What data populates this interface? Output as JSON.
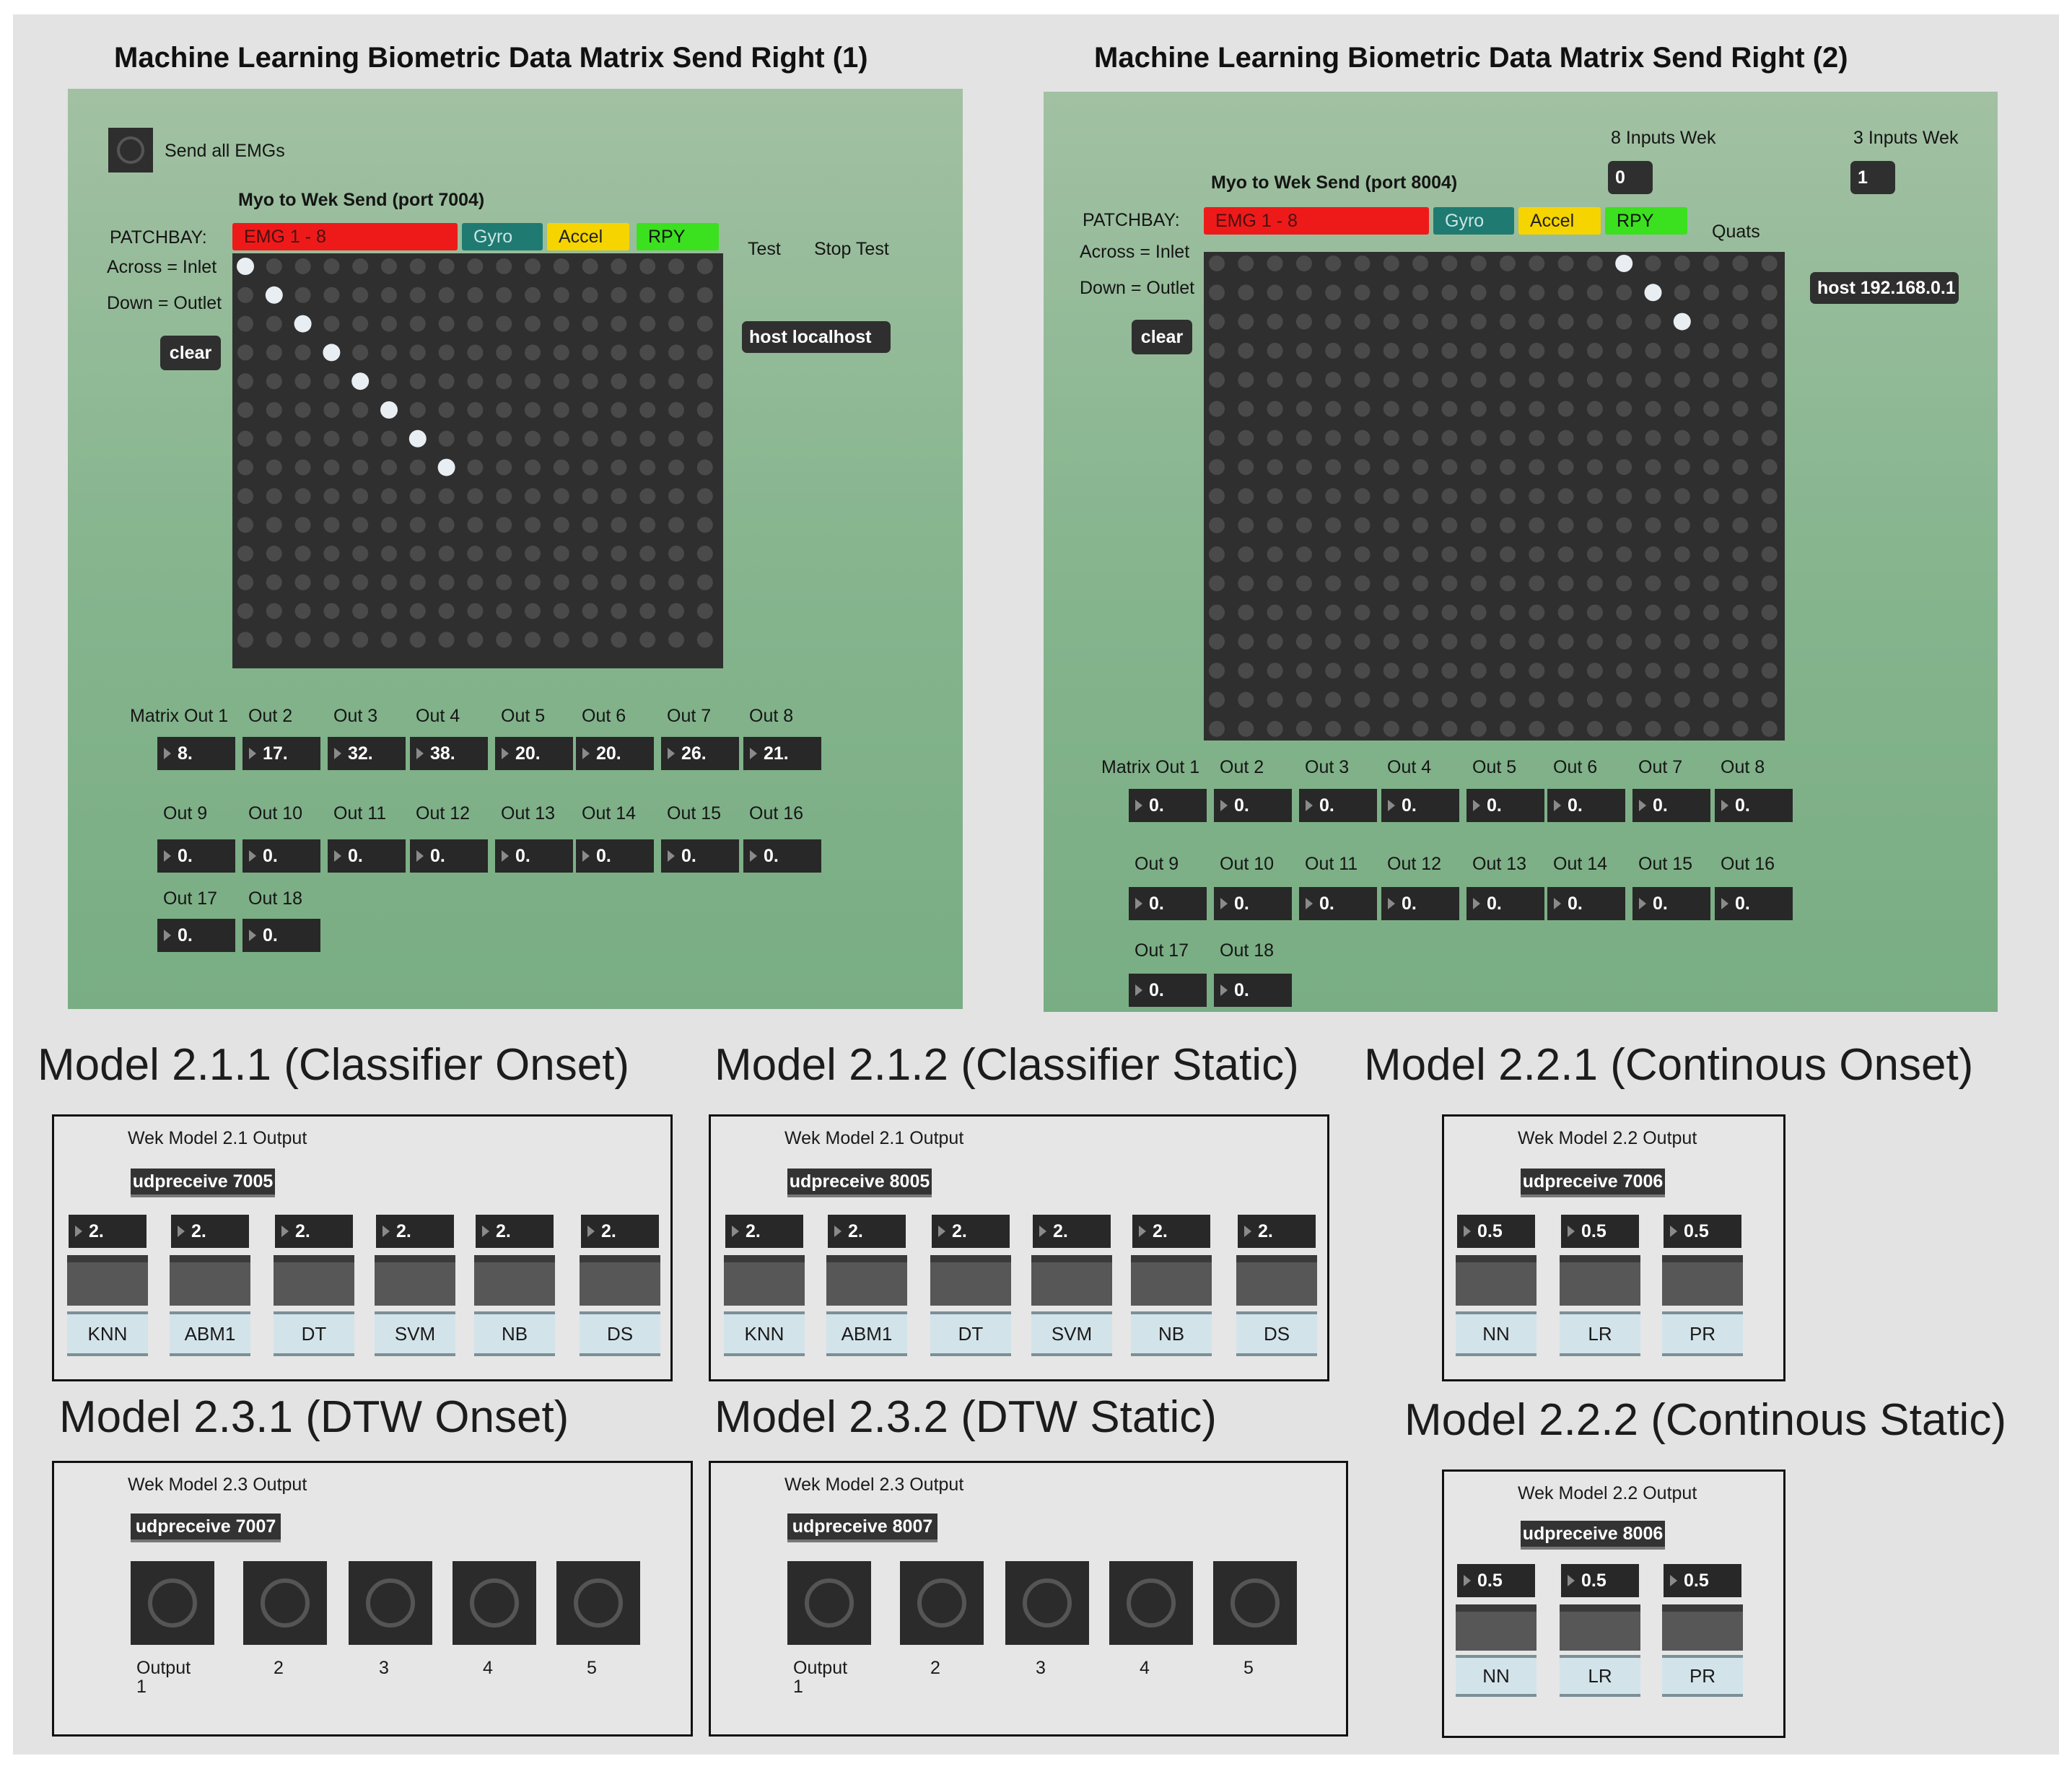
{
  "panel1": {
    "title": "Machine Learning Biometric Data Matrix Send Right (1)",
    "send_all_label": "Send all EMGs",
    "subtitle": "Myo to Wek Send (port 7004)",
    "patchbay_label": "PATCHBAY:",
    "across_label": "Across = Inlet",
    "down_label": "Down = Outlet",
    "clear_label": "clear",
    "headers": {
      "emg": "EMG 1 - 8",
      "gyro": "Gyro",
      "accel": "Accel",
      "rpy": "RPY",
      "test": "Test",
      "stop_test": "Stop Test"
    },
    "host": "host localhost",
    "out_labels": [
      "Matrix Out 1",
      "Out 2",
      "Out 3",
      "Out 4",
      "Out 5",
      "Out 6",
      "Out 7",
      "Out 8",
      "Out 9",
      "Out 10",
      "Out 11",
      "Out 12",
      "Out 13",
      "Out 14",
      "Out 15",
      "Out 16",
      "Out 17",
      "Out 18"
    ],
    "out_values": [
      "8.",
      "17.",
      "32.",
      "38.",
      "20.",
      "20.",
      "26.",
      "21.",
      "0.",
      "0.",
      "0.",
      "0.",
      "0.",
      "0.",
      "0.",
      "0.",
      "0.",
      "0."
    ],
    "matrix": {
      "cols": 17,
      "rows": 14,
      "active": [
        [
          0,
          0
        ],
        [
          1,
          1
        ],
        [
          2,
          2
        ],
        [
          3,
          3
        ],
        [
          4,
          4
        ],
        [
          5,
          5
        ],
        [
          6,
          6
        ],
        [
          7,
          7
        ]
      ]
    }
  },
  "panel2": {
    "title": "Machine Learning Biometric Data Matrix Send Right (2)",
    "inputs8_label": "8 Inputs Wek",
    "inputs8_value": "0",
    "inputs3_label": "3 Inputs Wek",
    "inputs3_value": "1",
    "subtitle": "Myo to Wek Send (port 8004)",
    "patchbay_label": "PATCHBAY:",
    "across_label": "Across = Inlet",
    "down_label": "Down = Outlet",
    "clear_label": "clear",
    "headers": {
      "emg": "EMG 1 - 8",
      "gyro": "Gyro",
      "accel": "Accel",
      "rpy": "RPY",
      "quats": "Quats"
    },
    "host": "host 192.168.0.1",
    "out_labels": [
      "Matrix Out 1",
      "Out 2",
      "Out 3",
      "Out 4",
      "Out 5",
      "Out 6",
      "Out 7",
      "Out 8",
      "Out 9",
      "Out 10",
      "Out 11",
      "Out 12",
      "Out 13",
      "Out 14",
      "Out 15",
      "Out 16",
      "Out 17",
      "Out 18"
    ],
    "out_values": [
      "0.",
      "0.",
      "0.",
      "0.",
      "0.",
      "0.",
      "0.",
      "0.",
      "0.",
      "0.",
      "0.",
      "0.",
      "0.",
      "0.",
      "0.",
      "0.",
      "0.",
      "0."
    ],
    "matrix": {
      "cols": 20,
      "rows": 20,
      "active": [
        [
          14,
          0
        ],
        [
          15,
          1
        ],
        [
          16,
          2
        ]
      ]
    }
  },
  "models": {
    "m211": {
      "title": "Model 2.1.1 (Classifier Onset)",
      "output_label": "Wek Model 2.1 Output",
      "udp": "udpreceive 7005",
      "values": [
        "2.",
        "2.",
        "2.",
        "2.",
        "2.",
        "2."
      ],
      "tabs": [
        "KNN",
        "ABM1",
        "DT",
        "SVM",
        "NB",
        "DS"
      ]
    },
    "m212": {
      "title": "Model 2.1.2 (Classifier Static)",
      "output_label": "Wek Model 2.1 Output",
      "udp": "udpreceive 8005",
      "values": [
        "2.",
        "2.",
        "2.",
        "2.",
        "2.",
        "2."
      ],
      "tabs": [
        "KNN",
        "ABM1",
        "DT",
        "SVM",
        "NB",
        "DS"
      ]
    },
    "m221": {
      "title": "Model 2.2.1 (Continous Onset)",
      "output_label": "Wek Model 2.2 Output",
      "udp": "udpreceive 7006",
      "values": [
        "0.5",
        "0.5",
        "0.5"
      ],
      "tabs": [
        "NN",
        "LR",
        "PR"
      ]
    },
    "m231": {
      "title": "Model 2.3.1 (DTW Onset)",
      "output_label": "Wek Model 2.3 Output",
      "udp": "udpreceive 7007",
      "outputs": [
        "Output",
        "2",
        "3",
        "4",
        "5"
      ],
      "output_sub": "1"
    },
    "m232": {
      "title": "Model 2.3.2 (DTW Static)",
      "output_label": "Wek Model 2.3 Output",
      "udp": "udpreceive 8007",
      "outputs": [
        "Output",
        "2",
        "3",
        "4",
        "5"
      ],
      "output_sub": "1"
    },
    "m222": {
      "title": "Model 2.2.2 (Continous Static)",
      "output_label": "Wek Model 2.2 Output",
      "udp": "udpreceive 8006",
      "values": [
        "0.5",
        "0.5",
        "0.5"
      ],
      "tabs": [
        "NN",
        "LR",
        "PR"
      ]
    }
  },
  "colors": {
    "emg": "#ee1a1a",
    "gyro": "#1f7a72",
    "accel": "#f5d400",
    "rpy": "#3be01f",
    "dot_active": "#e8eef2",
    "dot_idle": "#4a4a4a"
  }
}
